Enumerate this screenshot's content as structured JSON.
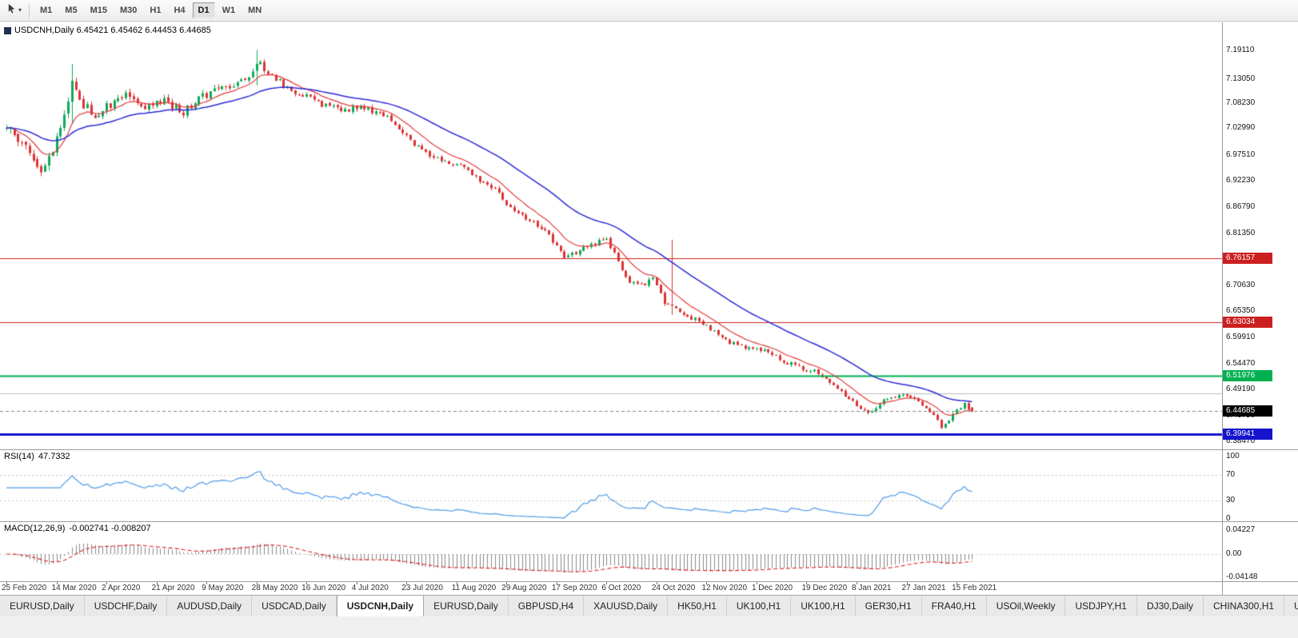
{
  "toolbar": {
    "timeframes": [
      "M1",
      "M5",
      "M15",
      "M30",
      "H1",
      "H4",
      "D1",
      "W1",
      "MN"
    ],
    "active_timeframe": "D1"
  },
  "chart_header": {
    "title": "USDCNH,Daily 6.45421 6.45462 6.44453 6.44685",
    "symbol": "USDCNH",
    "timeframe": "Daily",
    "open": "6.45421",
    "high": "6.45462",
    "low": "6.44453",
    "close": "6.44685"
  },
  "colors": {
    "background": "#ffffff",
    "bull": "#0fa958",
    "bear": "#dd3333",
    "grid_dotted": "#c8c8c8",
    "panel_border": "#9c9c9c"
  },
  "chart_data": [
    {
      "type": "candlestick",
      "title": "USDCNH,Daily",
      "ylabel": "Price",
      "ylim": [
        6.368,
        7.215
      ],
      "num_bars": 252,
      "price_axis_labels": [
        "7.19110",
        "7.13050",
        "7.08230",
        "7.02990",
        "6.97510",
        "6.92230",
        "6.86790",
        "6.81350",
        "6.76150",
        "6.70630",
        "6.65350",
        "6.59910",
        "6.54470",
        "6.49190",
        "6.43750",
        "6.38470"
      ],
      "x_labels": [
        "25 Feb 2020",
        "14 Mar 2020",
        "2 Apr 2020",
        "21 Apr 2020",
        "9 May 2020",
        "28 May 2020",
        "16 Jun 2020",
        "4 Jul 2020",
        "23 Jul 2020",
        "11 Aug 2020",
        "29 Aug 2020",
        "17 Sep 2020",
        "6 Oct 2020",
        "24 Oct 2020",
        "12 Nov 2020",
        "1 Dec 2020",
        "19 Dec 2020",
        "8 Jan 2021",
        "27 Jan 2021",
        "15 Feb 2021"
      ],
      "close_anchors": [
        [
          0,
          7.03
        ],
        [
          4,
          7.0
        ],
        [
          7,
          6.96
        ],
        [
          9,
          6.935
        ],
        [
          12,
          6.985
        ],
        [
          15,
          7.06
        ],
        [
          17,
          7.125
        ],
        [
          19,
          7.085
        ],
        [
          23,
          7.058
        ],
        [
          27,
          7.08
        ],
        [
          31,
          7.096
        ],
        [
          36,
          7.075
        ],
        [
          41,
          7.086
        ],
        [
          46,
          7.064
        ],
        [
          50,
          7.094
        ],
        [
          55,
          7.108
        ],
        [
          60,
          7.124
        ],
        [
          64,
          7.148
        ],
        [
          66,
          7.162
        ],
        [
          69,
          7.136
        ],
        [
          73,
          7.114
        ],
        [
          78,
          7.094
        ],
        [
          83,
          7.076
        ],
        [
          88,
          7.068
        ],
        [
          93,
          7.072
        ],
        [
          98,
          7.058
        ],
        [
          103,
          7.024
        ],
        [
          106,
          6.996
        ],
        [
          110,
          6.976
        ],
        [
          114,
          6.964
        ],
        [
          119,
          6.95
        ],
        [
          123,
          6.922
        ],
        [
          127,
          6.904
        ],
        [
          131,
          6.868
        ],
        [
          135,
          6.846
        ],
        [
          139,
          6.824
        ],
        [
          143,
          6.788
        ],
        [
          145,
          6.762
        ],
        [
          148,
          6.775
        ],
        [
          152,
          6.79
        ],
        [
          156,
          6.8
        ],
        [
          159,
          6.755
        ],
        [
          162,
          6.712
        ],
        [
          165,
          6.705
        ],
        [
          168,
          6.722
        ],
        [
          171,
          6.672
        ],
        [
          175,
          6.654
        ],
        [
          178,
          6.64
        ],
        [
          181,
          6.624
        ],
        [
          184,
          6.612
        ],
        [
          188,
          6.59
        ],
        [
          192,
          6.578
        ],
        [
          197,
          6.572
        ],
        [
          201,
          6.554
        ],
        [
          205,
          6.54
        ],
        [
          210,
          6.528
        ],
        [
          214,
          6.506
        ],
        [
          218,
          6.478
        ],
        [
          222,
          6.452
        ],
        [
          224,
          6.44
        ],
        [
          227,
          6.462
        ],
        [
          230,
          6.476
        ],
        [
          233,
          6.482
        ],
        [
          236,
          6.472
        ],
        [
          239,
          6.456
        ],
        [
          241,
          6.44
        ],
        [
          243,
          6.412
        ],
        [
          245,
          6.426
        ],
        [
          247,
          6.448
        ],
        [
          249,
          6.46
        ],
        [
          251,
          6.447
        ]
      ],
      "spikes": [
        [
          17,
          7.162,
          7.038
        ],
        [
          65,
          7.191,
          7.118
        ],
        [
          173,
          6.8,
          6.645
        ]
      ],
      "volatility_zones": [
        [
          0,
          0.0115
        ],
        [
          20,
          0.0085
        ],
        [
          66,
          0.006
        ],
        [
          120,
          0.0055
        ],
        [
          160,
          0.005
        ],
        [
          215,
          0.0045
        ]
      ],
      "last_candle": {
        "o": 6.45421,
        "h": 6.45462,
        "l": 6.44453,
        "c": 6.44685
      },
      "overlays": [
        {
          "name": "ema-fast",
          "period": 10,
          "color": "#e43b3b"
        },
        {
          "name": "ema-slow",
          "period": 34,
          "color": "#2b2bd5"
        }
      ],
      "hlines": [
        {
          "price": 6.76157,
          "label": "6.76157",
          "color": "#cc1f1f",
          "width": 1
        },
        {
          "price": 6.63034,
          "label": "6.63034",
          "color": "#cc1f1f",
          "width": 1
        },
        {
          "price": 6.51976,
          "label": "6.51976",
          "color": "#00b050",
          "width": 2
        },
        {
          "price": 6.484,
          "label": "",
          "color": "#bdbdbd",
          "width": 1
        },
        {
          "price": 6.39941,
          "label": "6.39941",
          "color": "#1414cc",
          "width": 3
        }
      ],
      "current_price": {
        "value": 6.44685,
        "label": "6.44685",
        "badge_color": "#000000",
        "line_color": "#888888"
      }
    },
    {
      "type": "line",
      "label": "RSI(14)",
      "value": "47.7332",
      "period": 14,
      "range": [
        0,
        100
      ],
      "levels": [
        70,
        30
      ],
      "scale_labels": [
        "100",
        "70",
        "30",
        "0"
      ],
      "color": "#4f9be8"
    },
    {
      "type": "macd",
      "label": "MACD(12,26,9)",
      "values_text": "-0.002741 -0.008207",
      "params": [
        12,
        26,
        9
      ],
      "scale_labels": [
        "0.04227",
        "0.00",
        "-0.04148"
      ],
      "hist_color": "#8a8a8a",
      "signal_color": "#dd2222"
    }
  ],
  "tabs": {
    "items": [
      "EURUSD,Daily",
      "USDCHF,Daily",
      "AUDUSD,Daily",
      "USDCAD,Daily",
      "USDCNH,Daily",
      "EURUSD,Daily",
      "GBPUSD,H4",
      "XAUUSD,Daily",
      "HK50,H1",
      "UK100,H1",
      "UK100,H1",
      "GER30,H1",
      "FRA40,H1",
      "USOil,Weekly",
      "USDJPY,H1",
      "DJ30,Daily",
      "CHINA300,H1",
      "U"
    ],
    "active_index": 4
  }
}
